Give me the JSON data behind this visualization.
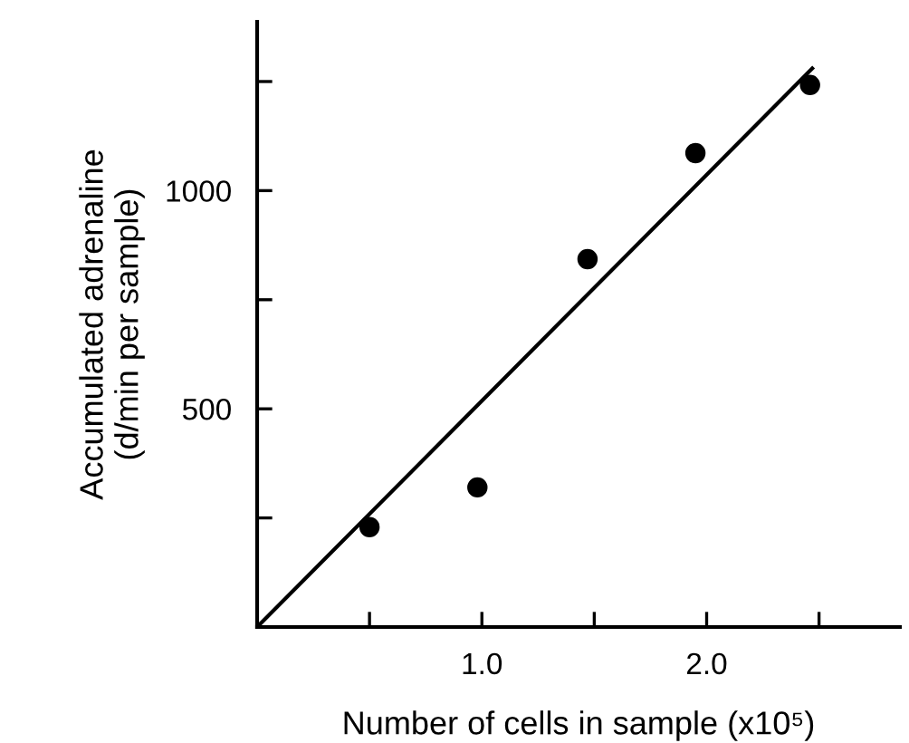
{
  "chart_data": {
    "type": "scatter",
    "xlabel": "Number of cells in sample (x10⁵)",
    "ylabel": "Accumulated adrenaline\n(d/min per sample)",
    "series": [
      {
        "color": "#000000",
        "marker": "circle",
        "x": [
          0.5,
          0.98,
          1.47,
          1.95,
          2.46
        ],
        "values": [
          229,
          320,
          843,
          1086,
          1242
        ]
      },
      {
        "type": "line",
        "color": "#000000",
        "marker": "none",
        "line_style": "solid",
        "x": [
          0,
          2.47
        ],
        "values": [
          0,
          1280
        ]
      }
    ],
    "xlim": [
      0,
      2.86
    ],
    "ylim": [
      0,
      1387
    ],
    "xticks": [
      {
        "value": 0.5,
        "label": null
      },
      {
        "value": 1.0,
        "label": "1.0"
      },
      {
        "value": 1.5,
        "label": null
      },
      {
        "value": 2.0,
        "label": "2.0"
      },
      {
        "value": 2.5,
        "label": null
      }
    ],
    "yticks": [
      {
        "value": 250,
        "label": null
      },
      500,
      {
        "value": 750,
        "label": null
      },
      1000,
      {
        "value": 1250,
        "label": null
      }
    ],
    "grid": false,
    "legend": false
  }
}
